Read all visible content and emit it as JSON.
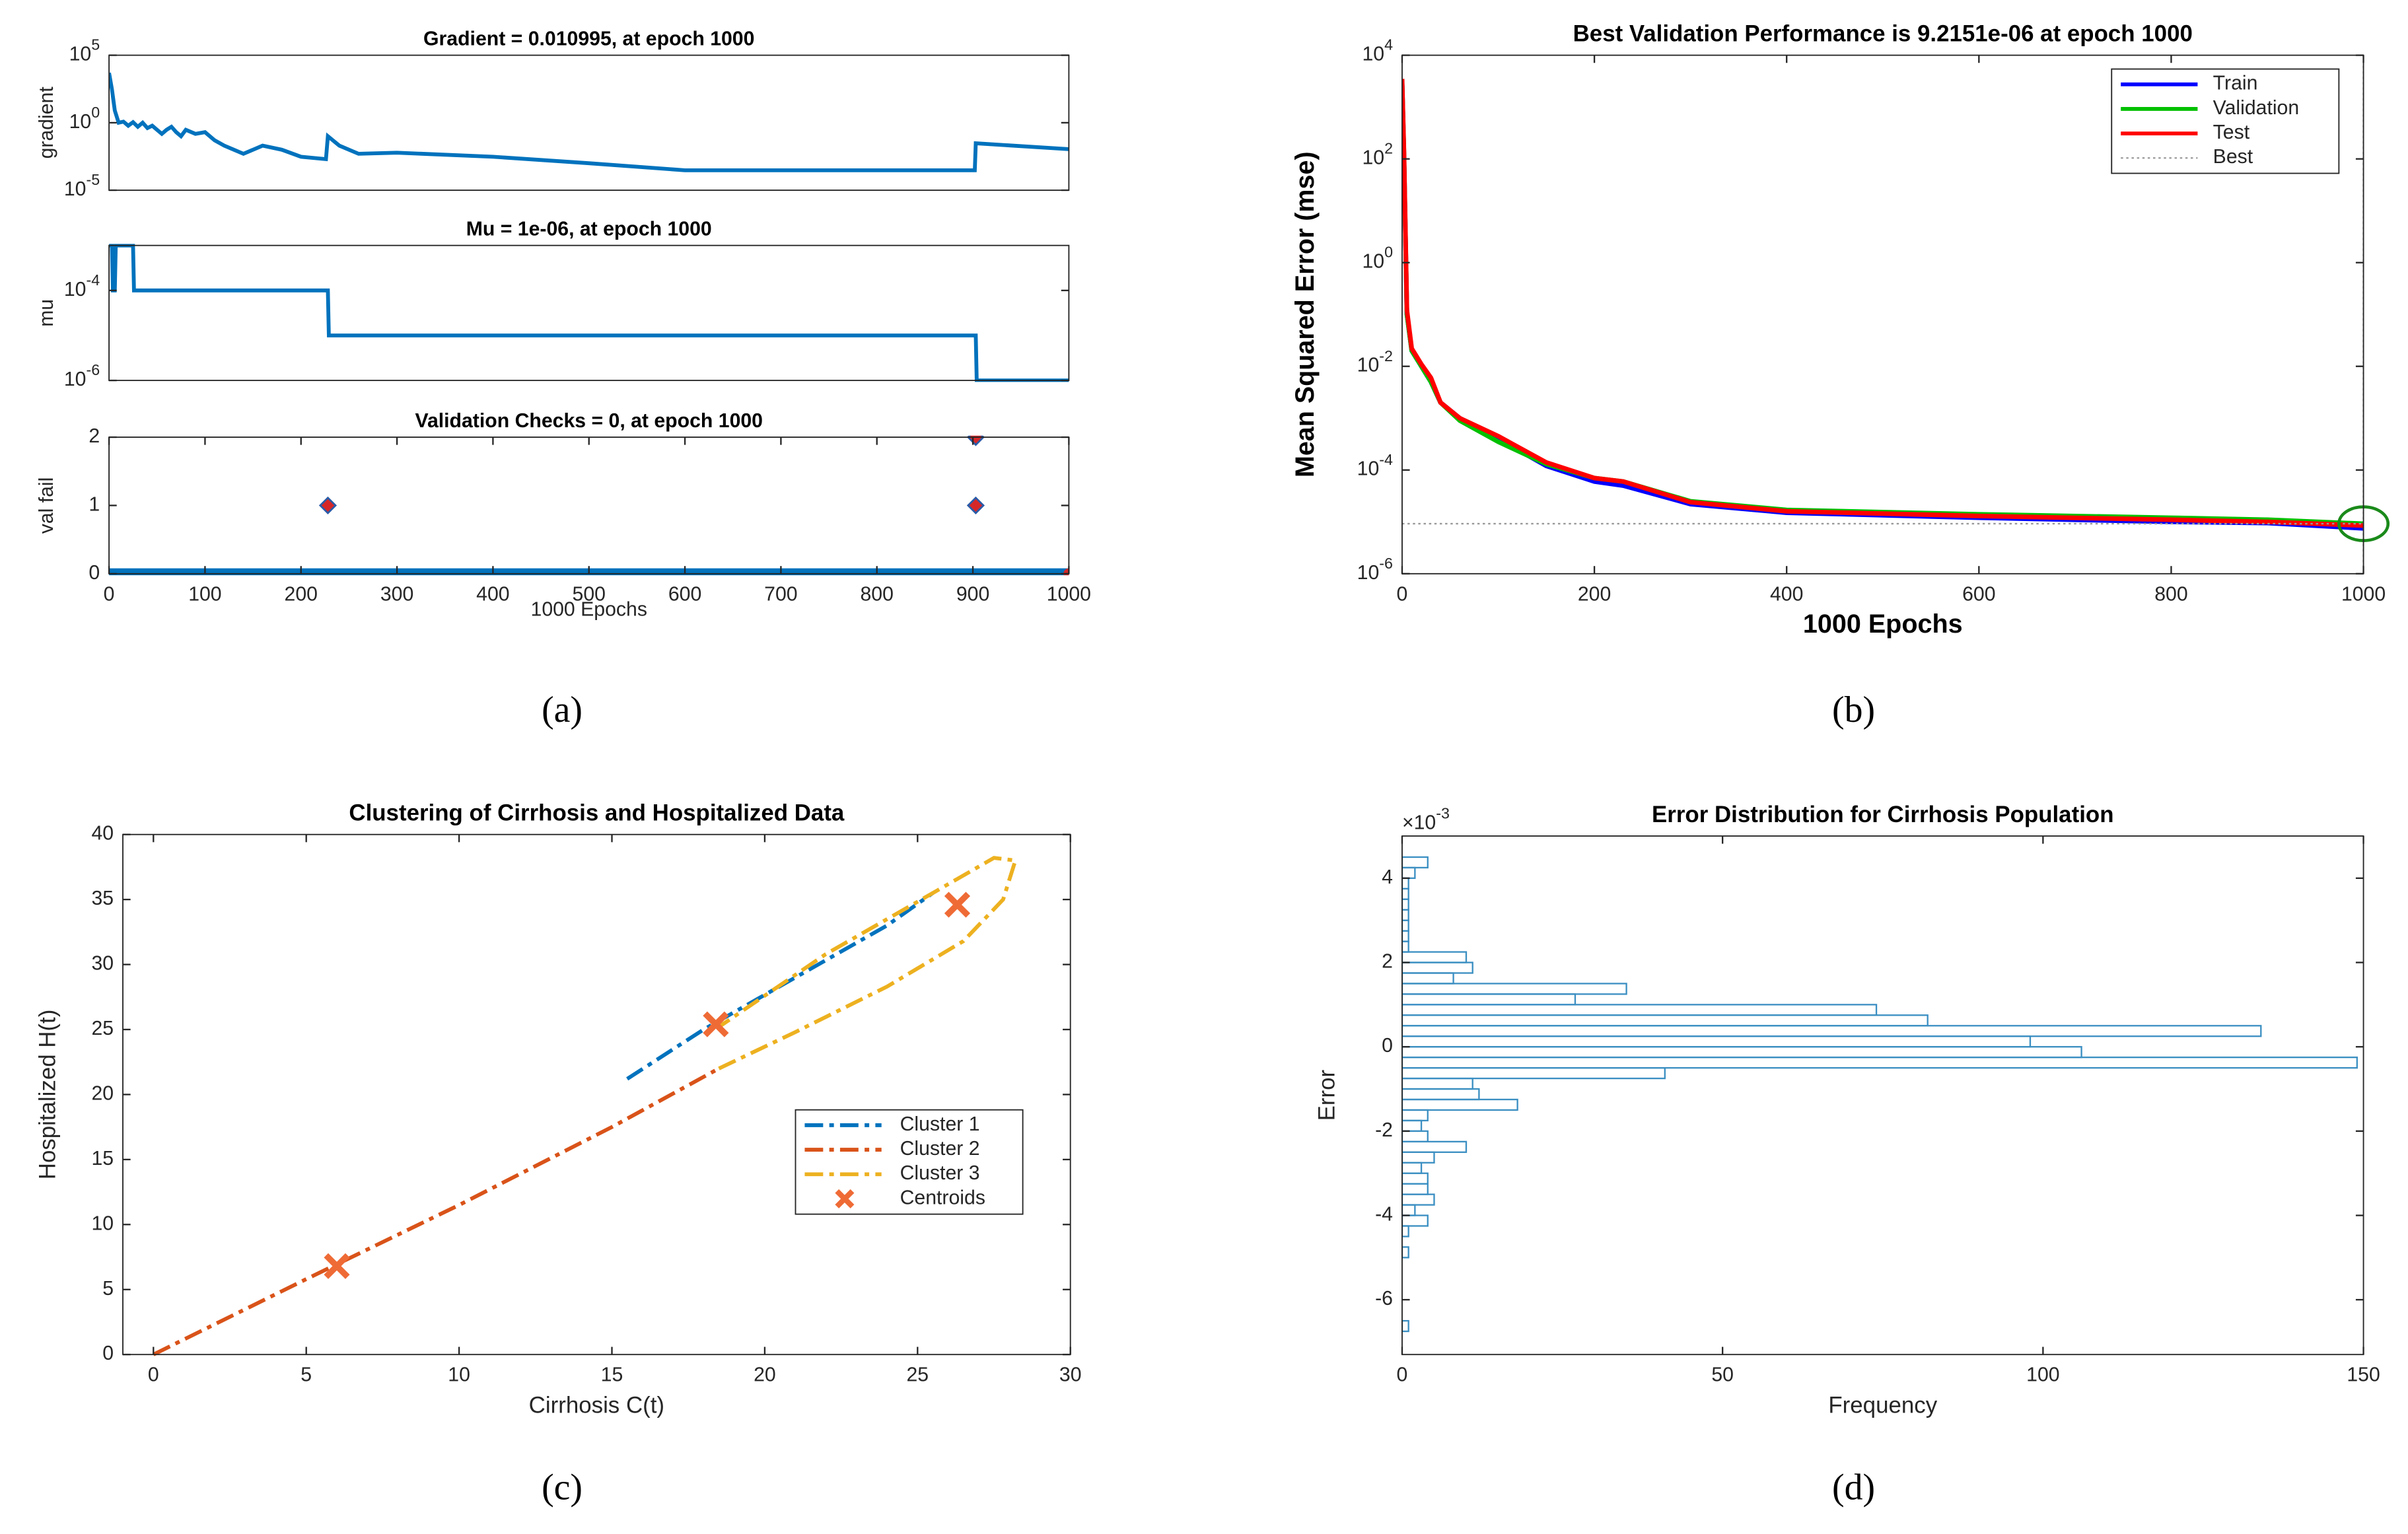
{
  "chart_data": [
    {
      "type": "line",
      "title": "Gradient = 0.010995, at epoch 1000",
      "ylabel": "gradient",
      "yscale": "log",
      "xlim": [
        0,
        1000
      ],
      "ylim": [
        1e-05,
        100000
      ],
      "yticks": [
        {
          "value": 1e-05,
          "label": "10^-5"
        },
        {
          "value": 1,
          "label": "10^0"
        },
        {
          "value": 100000,
          "label": "10^5"
        }
      ],
      "series": [
        {
          "color": "#0072bd",
          "x": [
            0,
            3,
            6,
            10,
            15,
            20,
            25,
            30,
            35,
            40,
            45,
            50,
            55,
            60,
            65,
            70,
            75,
            80,
            90,
            100,
            110,
            120,
            130,
            140,
            160,
            180,
            200,
            226,
            228,
            240,
            260,
            300,
            400,
            500,
            600,
            700,
            800,
            902,
            903,
            1000
          ],
          "values": [
            5000,
            300,
            8,
            1,
            1.2,
            0.6,
            1.1,
            0.5,
            1,
            0.4,
            0.6,
            0.3,
            0.15,
            0.3,
            0.5,
            0.2,
            0.1,
            0.3,
            0.15,
            0.2,
            0.05,
            0.02,
            0.01,
            0.005,
            0.02,
            0.01,
            0.003,
            0.002,
            0.1,
            0.02,
            0.005,
            0.006,
            0.003,
            0.001,
            0.0003,
            0.0003,
            0.0003,
            0.0003,
            0.03,
            0.011
          ]
        }
      ]
    },
    {
      "type": "line",
      "title": "Mu = 1e-06, at epoch 1000",
      "ylabel": "mu",
      "yscale": "log",
      "xlim": [
        0,
        1000
      ],
      "ylim": [
        1e-06,
        0.001
      ],
      "yticks": [
        {
          "value": 1e-06,
          "label": "10^-6"
        },
        {
          "value": 0.0001,
          "label": "10^-4"
        }
      ],
      "series": [
        {
          "color": "#0072bd",
          "x": [
            0,
            3,
            4,
            6,
            7,
            10,
            11,
            25,
            26,
            228,
            229,
            903,
            904,
            1000
          ],
          "values": [
            0.001,
            0.001,
            0.0001,
            0.0001,
            0.001,
            0.001,
            0.001,
            0.001,
            0.0001,
            0.0001,
            1e-05,
            1e-05,
            1e-06,
            1e-06
          ]
        }
      ]
    },
    {
      "type": "line",
      "title": "Validation Checks = 0, at epoch 1000",
      "ylabel": "val fail",
      "xlabel": "1000 Epochs",
      "caption": "(a)",
      "xlim": [
        0,
        1000
      ],
      "ylim": [
        0,
        2
      ],
      "yticks": [
        0,
        1,
        2
      ],
      "xticks": [
        0,
        100,
        200,
        300,
        400,
        500,
        600,
        700,
        800,
        900,
        1000
      ],
      "series": [
        {
          "color": "#0072bd",
          "x": [
            0,
            1000
          ],
          "values": [
            0,
            0
          ]
        },
        {
          "color": "#d62728",
          "edge": "#2a5ca8",
          "marker": "diamond",
          "x": [
            228,
            903,
            903
          ],
          "values": [
            1,
            1,
            2
          ]
        },
        {
          "color": "#d62728",
          "marker": "dot",
          "x": [
            1000
          ],
          "values": [
            0
          ]
        }
      ]
    },
    {
      "type": "line",
      "title": "Best Validation Performance is 9.2151e-06 at epoch 1000",
      "ylabel": "Mean Squared Error  (mse)",
      "xlabel": "1000 Epochs",
      "caption": "(b)",
      "yscale": "log",
      "bold_labels": true,
      "legend": "northeast",
      "best_circle_color": "#1a8a1a",
      "xlim": [
        0,
        1000
      ],
      "ylim": [
        1e-06,
        10000
      ],
      "xticks": [
        0,
        200,
        400,
        600,
        800,
        1000
      ],
      "yticks": [
        {
          "value": 1e-06,
          "label": "10^-6"
        },
        {
          "value": 0.0001,
          "label": "10^-4"
        },
        {
          "value": 0.01,
          "label": "10^-2"
        },
        {
          "value": 1,
          "label": "10^0"
        },
        {
          "value": 100,
          "label": "10^2"
        },
        {
          "value": 10000,
          "label": "10^4"
        }
      ],
      "series": [
        {
          "name": "Train",
          "color": "#0000ff",
          "x": [
            0,
            2,
            5,
            10,
            20,
            30,
            40,
            60,
            100,
            150,
            200,
            230,
            300,
            400,
            600,
            800,
            900,
            1000
          ],
          "values": [
            3000,
            100,
            0.1,
            0.02,
            0.01,
            0.005,
            0.002,
            0.001,
            0.0004,
            0.00012,
            6e-05,
            5e-05,
            2.2e-05,
            1.5e-05,
            1.2e-05,
            1e-05,
            9.5e-06,
            7.5e-06
          ]
        },
        {
          "name": "Validation",
          "color": "#00c000",
          "x": [
            0,
            2,
            5,
            10,
            20,
            30,
            40,
            60,
            100,
            150,
            200,
            230,
            300,
            400,
            600,
            800,
            900,
            1000
          ],
          "values": [
            3000,
            110,
            0.1,
            0.02,
            0.01,
            0.005,
            0.002,
            0.0009,
            0.00035,
            0.00013,
            7e-05,
            6e-05,
            2.5e-05,
            1.7e-05,
            1.4e-05,
            1.2e-05,
            1.1e-05,
            9.2151e-06
          ]
        },
        {
          "name": "Test",
          "color": "#ff0000",
          "x": [
            0,
            2,
            5,
            10,
            20,
            30,
            40,
            60,
            100,
            150,
            200,
            230,
            300,
            400,
            600,
            800,
            900,
            1000
          ],
          "values": [
            3500,
            120,
            0.12,
            0.022,
            0.011,
            0.006,
            0.002,
            0.001,
            0.00045,
            0.00014,
            7e-05,
            6e-05,
            2.4e-05,
            1.6e-05,
            1.3e-05,
            1.1e-05,
            1e-05,
            8.5e-06
          ]
        },
        {
          "name": "Best",
          "color": "#999999",
          "style": "dotted",
          "x": [
            0,
            1000
          ],
          "values": [
            9.2151e-06,
            9.2151e-06
          ]
        }
      ]
    },
    {
      "type": "line",
      "title": "Clustering of Cirrhosis and Hospitalized Data",
      "xlabel": "Cirrhosis C(t)",
      "ylabel": "Hospitalized H(t)",
      "caption": "(c)",
      "legend": "east",
      "xlim": [
        -1,
        30
      ],
      "ylim": [
        0,
        40
      ],
      "xticks": [
        0,
        5,
        10,
        15,
        20,
        25,
        30
      ],
      "yticks": [
        0,
        5,
        10,
        15,
        20,
        25,
        30,
        35,
        40
      ],
      "series": [
        {
          "name": "Cluster 1",
          "color": "#0072bd",
          "style": "dashed",
          "x": [
            15.5,
            18,
            21,
            24,
            25.5
          ],
          "values": [
            21.2,
            25,
            29,
            33,
            35.5
          ]
        },
        {
          "name": "Cluster 2",
          "color": "#d95319",
          "style": "dashed",
          "x": [
            0,
            5,
            10,
            15,
            18.5
          ],
          "values": [
            0,
            5.8,
            11.5,
            17.5,
            22
          ]
        },
        {
          "name": "Cluster 3",
          "color": "#edb120",
          "style": "dashed",
          "x": [
            18.5,
            21,
            24,
            26.5,
            27.8,
            28.2,
            27.5,
            25.5,
            22,
            18.5
          ],
          "values": [
            22,
            24.8,
            28.3,
            31.8,
            35,
            38,
            38.2,
            35.5,
            30.8,
            25.2
          ]
        },
        {
          "name": "Centroids",
          "color": "#ef6b36",
          "marker": "x",
          "x": [
            6,
            18.4,
            26.3
          ],
          "values": [
            6.8,
            25.4,
            34.6
          ]
        }
      ]
    },
    {
      "type": "histogram",
      "title": "Error Distribution for Cirrhosis Population",
      "xlabel": "Frequency",
      "ylabel": "Error",
      "caption": "(d)",
      "exponent_label": "×10^-3",
      "orientation": "horizontal",
      "color": "#3b8fc2",
      "xlim": [
        0,
        150
      ],
      "ylim": [
        -7.3,
        5
      ],
      "xticks": [
        0,
        50,
        100,
        150
      ],
      "yticks": [
        -6,
        -4,
        -2,
        0,
        2,
        4
      ],
      "bins": [
        -6.75,
        -6.5,
        -6.25,
        -6,
        -5.75,
        -5.5,
        -5.25,
        -5,
        -4.75,
        -4.5,
        -4.25,
        -4,
        -3.75,
        -3.5,
        -3.25,
        -3,
        -2.75,
        -2.5,
        -2.25,
        -2,
        -1.75,
        -1.5,
        -1.25,
        -1,
        -0.75,
        -0.5,
        -0.25,
        0,
        0.25,
        0.5,
        0.75,
        1,
        1.25,
        1.5,
        1.75,
        2,
        2.25,
        2.5,
        2.75,
        3,
        3.25,
        3.5,
        3.75,
        4,
        4.25,
        4.5
      ],
      "counts": [
        1,
        0,
        0,
        0,
        0,
        0,
        0,
        1,
        0,
        1,
        4,
        2,
        5,
        4,
        4,
        3,
        5,
        10,
        4,
        3,
        4,
        18,
        12,
        11,
        41,
        149,
        106,
        98,
        134,
        82,
        74,
        27,
        35,
        8,
        11,
        10,
        1,
        1,
        1,
        1,
        1,
        1,
        1,
        2,
        4
      ]
    }
  ]
}
